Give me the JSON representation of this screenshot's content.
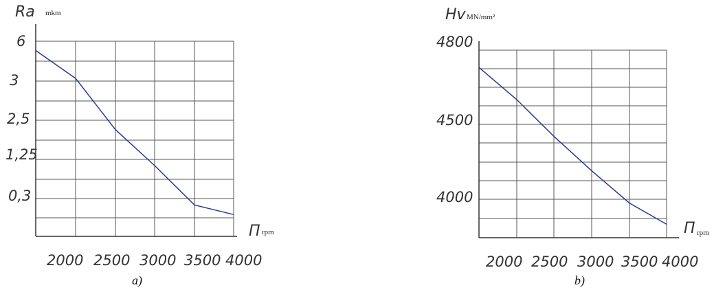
{
  "chart_data": [
    {
      "type": "line",
      "ylabel_symbol": "Ra",
      "ylabel_unit": "mkm",
      "xlabel_symbol": "П",
      "xlabel_unit": "rpm",
      "caption": "a)",
      "yticks": [
        "6",
        "3",
        "2,5",
        "1,25",
        "0,3"
      ],
      "xticks": [
        "2000",
        "2500",
        "3000",
        "3500",
        "4000"
      ],
      "series": [
        {
          "x": [
            1650,
            2000,
            2500,
            3000,
            3500,
            4000
          ],
          "y": [
            5.3,
            3.2,
            2.2,
            1.1,
            0.2,
            0.05
          ]
        }
      ]
    },
    {
      "type": "line",
      "ylabel_symbol": "Hv",
      "ylabel_unit": "MN/mm²",
      "xlabel_symbol": "П",
      "xlabel_unit": "rpm",
      "caption": "b)",
      "yticks": [
        "4800",
        "4500",
        "4000"
      ],
      "xticks": [
        "2000",
        "2500",
        "3000",
        "3500",
        "4000"
      ],
      "series": [
        {
          "x": [
            1650,
            2000,
            2500,
            3000,
            3500,
            4000
          ],
          "y": [
            4730,
            4600,
            4420,
            4190,
            3980,
            3870
          ]
        }
      ]
    }
  ]
}
